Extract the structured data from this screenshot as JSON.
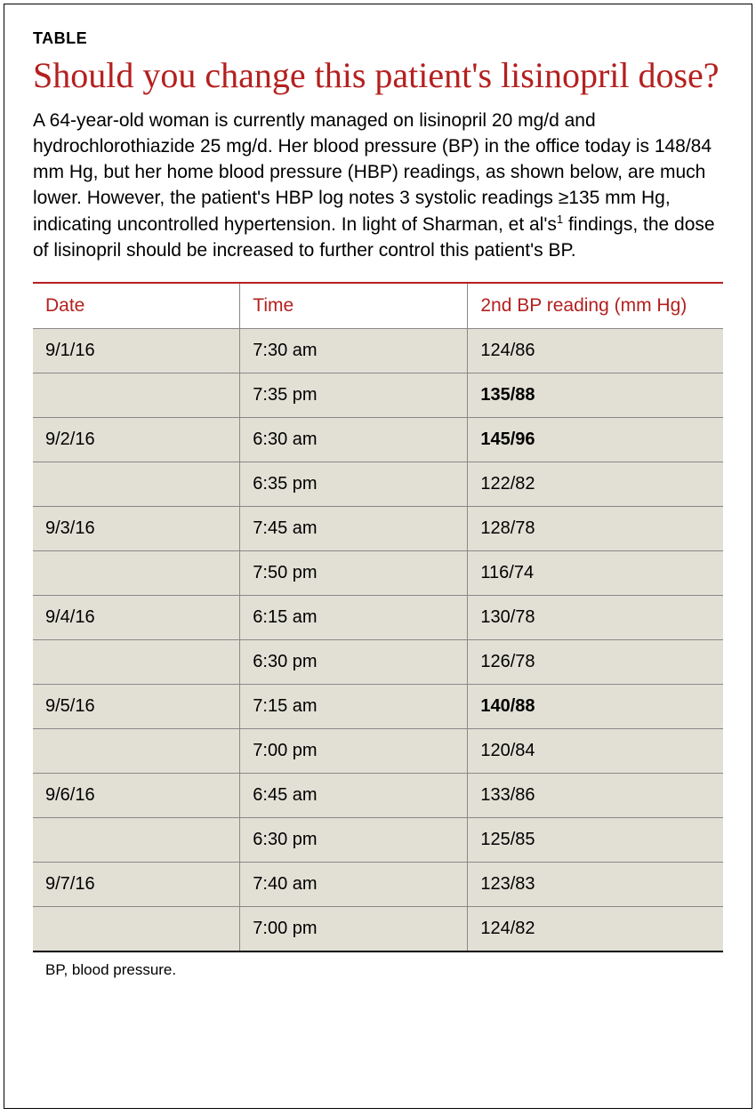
{
  "label": "TABLE",
  "title": "Should you change this patient's lisinopril dose?",
  "intro_html": "A 64-year-old woman is currently managed on lisinopril 20 mg/d and hydrochlorothiazide 25 mg/d. Her blood pressure (BP) in the office today is 148/84 mm Hg, but her home blood pressure (HBP) readings, as shown below, are much lower. However, the patient's HBP log notes 3 systolic readings ≥135 mm Hg, indicating uncontrolled hypertension. In light of Sharman, et al's<sup>1</sup> findings, the dose of lisinopril should be increased to further control this patient's BP.",
  "columns": [
    "Date",
    "Time",
    "2nd BP reading (mm Hg)"
  ],
  "rows": [
    {
      "date": "9/1/16",
      "time": "7:30 am",
      "bp": "124/86",
      "bold": false
    },
    {
      "date": "",
      "time": "7:35 pm",
      "bp": "135/88",
      "bold": true
    },
    {
      "date": "9/2/16",
      "time": "6:30 am",
      "bp": "145/96",
      "bold": true
    },
    {
      "date": "",
      "time": "6:35 pm",
      "bp": "122/82",
      "bold": false
    },
    {
      "date": "9/3/16",
      "time": "7:45 am",
      "bp": "128/78",
      "bold": false
    },
    {
      "date": "",
      "time": "7:50 pm",
      "bp": "116/74",
      "bold": false
    },
    {
      "date": "9/4/16",
      "time": "6:15 am",
      "bp": "130/78",
      "bold": false
    },
    {
      "date": "",
      "time": "6:30 pm",
      "bp": "126/78",
      "bold": false
    },
    {
      "date": "9/5/16",
      "time": "7:15 am",
      "bp": "140/88",
      "bold": true
    },
    {
      "date": "",
      "time": "7:00 pm",
      "bp": "120/84",
      "bold": false
    },
    {
      "date": "9/6/16",
      "time": "6:45 am",
      "bp": "133/86",
      "bold": false
    },
    {
      "date": "",
      "time": "6:30 pm",
      "bp": "125/85",
      "bold": false
    },
    {
      "date": "9/7/16",
      "time": "7:40 am",
      "bp": "123/83",
      "bold": false
    },
    {
      "date": "",
      "time": "7:00 pm",
      "bp": "124/82",
      "bold": false
    }
  ],
  "footnote": "BP, blood pressure.",
  "colors": {
    "accent_red": "#b4201f",
    "row_bg": "#e2e0d5",
    "border_gray": "#888888",
    "text": "#000000",
    "bg": "#ffffff"
  },
  "typography": {
    "title_fontsize": 40,
    "intro_fontsize": 21,
    "header_fontsize": 21,
    "cell_fontsize": 20,
    "footnote_fontsize": 17,
    "label_fontsize": 18
  },
  "column_widths_pct": [
    30,
    33,
    37
  ]
}
